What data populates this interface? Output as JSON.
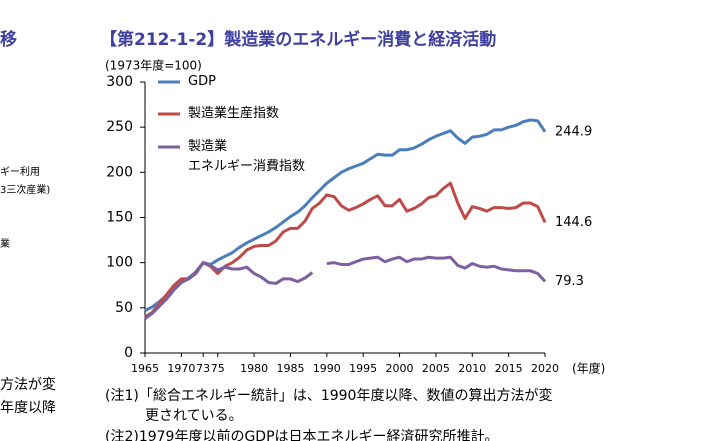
{
  "chart_data": {
    "type": "line",
    "title": "【第212-1-2】製造業のエネルギー消費と経済活動",
    "y_unit": "(1973年度=100)",
    "x_unit": "(年度)",
    "x": [
      1965,
      1966,
      1967,
      1968,
      1969,
      1970,
      1971,
      1972,
      1973,
      1974,
      1975,
      1976,
      1977,
      1978,
      1979,
      1980,
      1981,
      1982,
      1983,
      1984,
      1985,
      1986,
      1987,
      1988,
      1989,
      1990,
      1991,
      1992,
      1993,
      1994,
      1995,
      1996,
      1997,
      1998,
      1999,
      2000,
      2001,
      2002,
      2003,
      2004,
      2005,
      2006,
      2007,
      2008,
      2009,
      2010,
      2011,
      2012,
      2013,
      2014,
      2015,
      2016,
      2017,
      2018,
      2019,
      2020
    ],
    "series": [
      {
        "name": "GDP",
        "color": "#4a7ebb",
        "values": [
          47,
          51,
          57,
          64,
          72,
          79,
          83,
          90,
          100,
          98,
          103,
          107,
          111,
          117,
          122,
          126,
          130,
          134,
          139,
          145,
          151,
          156,
          163,
          172,
          180,
          188,
          194,
          200,
          204,
          207,
          210,
          215,
          220,
          219,
          219,
          225,
          225,
          227,
          231,
          236,
          240,
          243,
          246,
          238,
          232,
          239,
          240,
          242,
          247,
          247,
          250,
          252,
          256,
          258,
          257,
          244.9
        ]
      },
      {
        "name": "製造業生産指数",
        "color": "#be4b48",
        "values": [
          40,
          45,
          55,
          65,
          75,
          82,
          82,
          89,
          100,
          96,
          88,
          96,
          100,
          106,
          114,
          118,
          119,
          119,
          124,
          134,
          138,
          138,
          146,
          160,
          166,
          175,
          173,
          163,
          158,
          161,
          165,
          170,
          174,
          163,
          163,
          170,
          157,
          160,
          165,
          172,
          174,
          182,
          188,
          166,
          149,
          162,
          160,
          157,
          161,
          161,
          160,
          161,
          166,
          166,
          162,
          144.6
        ]
      },
      {
        "name": "製造業\nエネルギー消費指数",
        "color": "#7d60a0",
        "values": [
          38,
          44,
          52,
          60,
          70,
          78,
          82,
          88,
          100,
          97,
          92,
          95,
          93,
          93,
          95,
          88,
          84,
          78,
          77,
          82,
          82,
          79,
          83,
          89,
          null,
          99,
          100,
          98,
          98,
          101,
          104,
          105,
          106,
          101,
          104,
          106,
          101,
          104,
          104,
          106,
          105,
          105,
          106,
          97,
          94,
          99,
          96,
          95,
          96,
          93,
          92,
          91,
          91,
          91,
          88,
          79.3
        ]
      }
    ],
    "xlim": [
      1965,
      2020
    ],
    "xticks": [
      1965,
      1970,
      {
        "value": 1973,
        "label": "73"
      },
      {
        "value": 1975,
        "label": "75"
      },
      1980,
      1985,
      1990,
      1995,
      2000,
      2005,
      2010,
      2015,
      2020
    ],
    "ylim": [
      0,
      300
    ],
    "yticks": [
      0,
      50,
      100,
      150,
      200,
      250,
      300
    ],
    "grid": false
  },
  "notes": [
    "(注1)「総合エネルギー統計」は、1990年度以降、数値の算出方法が変",
    "更されている。",
    "(注2)1979年度以前のGDPは日本エネルギー経済研究所推計。"
  ],
  "left_fragments": [
    "移",
    "ギー利用",
    "3三次産業)",
    "業",
    "方法が変",
    "年度以降"
  ]
}
